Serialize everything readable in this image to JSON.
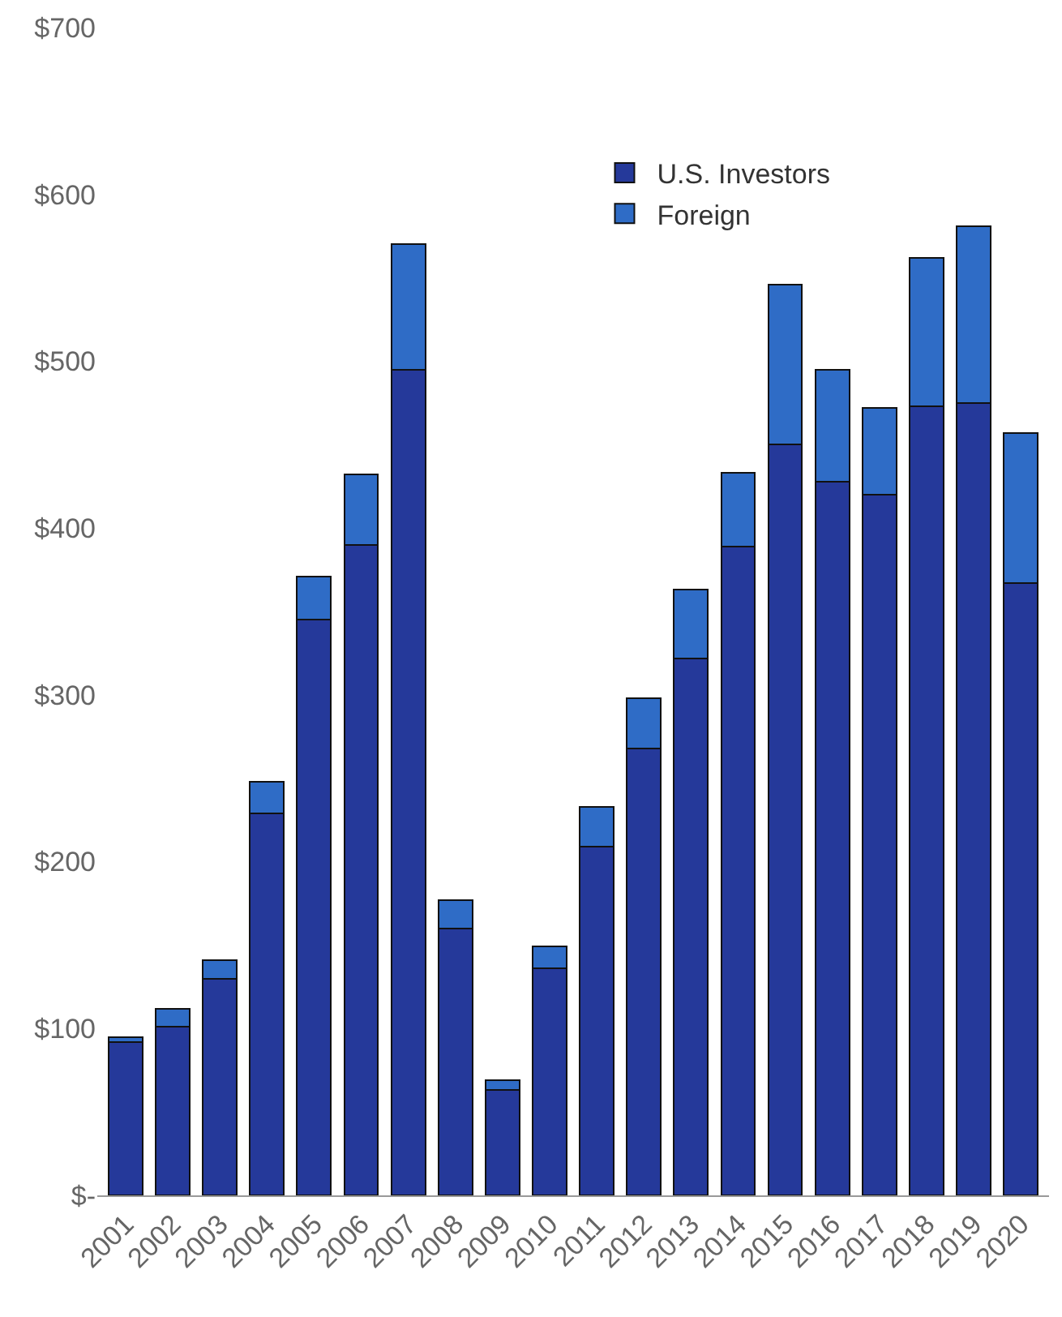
{
  "chart_data": {
    "type": "bar",
    "stacked": true,
    "categories": [
      "2001",
      "2002",
      "2003",
      "2004",
      "2005",
      "2006",
      "2007",
      "2008",
      "2009",
      "2010",
      "2011",
      "2012",
      "2013",
      "2014",
      "2015",
      "2016",
      "2017",
      "2018",
      "2019",
      "2020"
    ],
    "series": [
      {
        "name": "U.S. Investors",
        "color": "#25399a",
        "values": [
          92,
          101,
          130,
          229,
          345,
          390,
          495,
          160,
          63,
          136,
          209,
          268,
          322,
          389,
          450,
          428,
          420,
          473,
          475,
          367
        ]
      },
      {
        "name": "Foreign",
        "color": "#2f6cc6",
        "values": [
          3,
          11,
          11,
          19,
          26,
          42,
          75,
          17,
          6,
          13,
          24,
          30,
          41,
          44,
          96,
          67,
          52,
          89,
          106,
          90
        ]
      }
    ],
    "ylim": [
      0,
      700
    ],
    "yticks": [
      {
        "value": 0,
        "label": "$-"
      },
      {
        "value": 100,
        "label": "$100"
      },
      {
        "value": 200,
        "label": "$200"
      },
      {
        "value": 300,
        "label": "$300"
      },
      {
        "value": 400,
        "label": "$400"
      },
      {
        "value": 500,
        "label": "$500"
      },
      {
        "value": 600,
        "label": "$600"
      },
      {
        "value": 700,
        "label": "$700"
      }
    ],
    "legend": "top right"
  }
}
